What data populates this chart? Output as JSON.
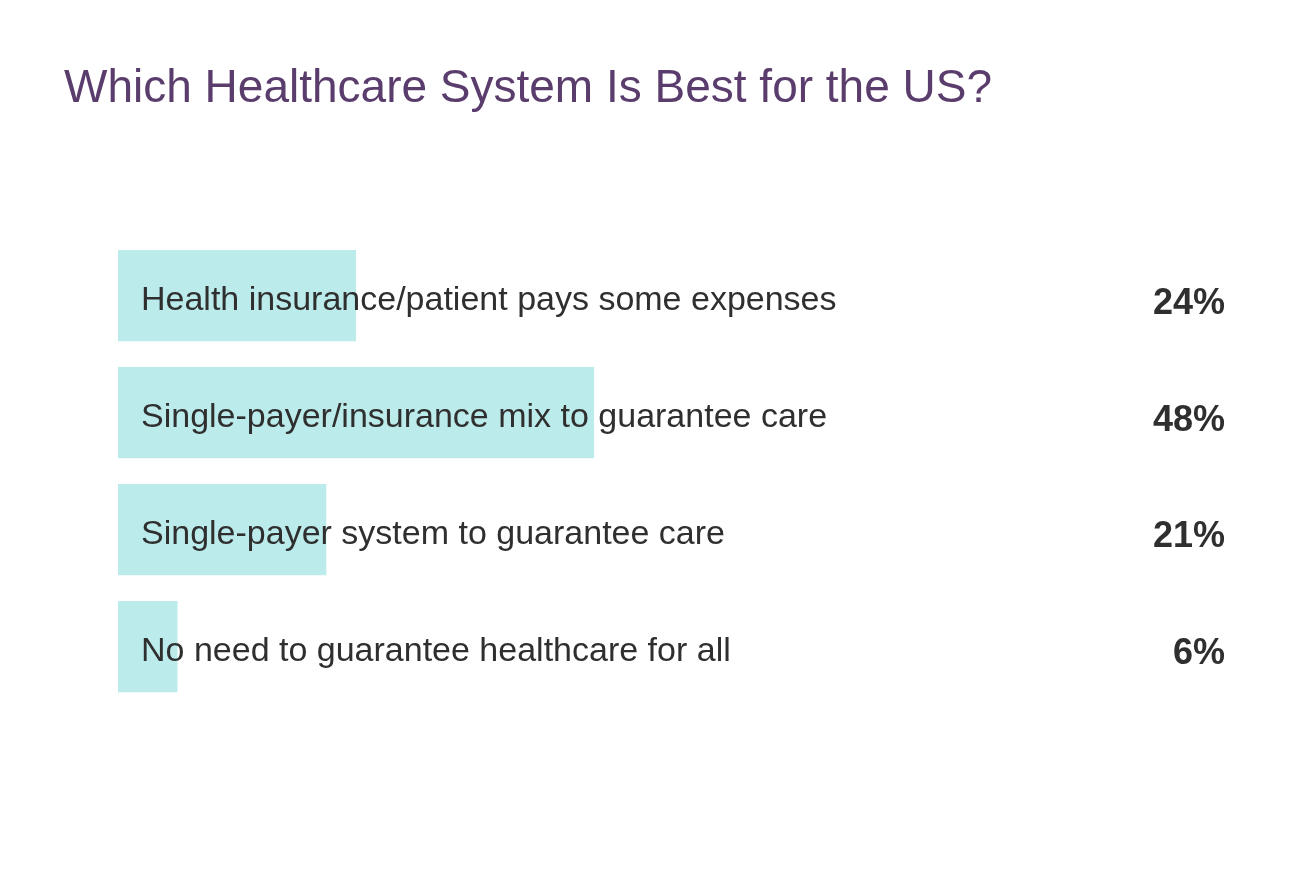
{
  "chart_data": {
    "type": "bar",
    "orientation": "horizontal",
    "title": "Which Healthcare System Is Best for the US?",
    "categories": [
      "Health insurance/patient pays some expenses",
      "Single-payer/insurance mix to guarantee care",
      "Single-payer system to guarantee care",
      "No need to guarantee healthcare for all"
    ],
    "values": [
      24,
      48,
      21,
      6
    ],
    "color": "#bcebeb",
    "value_labels": [
      "24%",
      "48%",
      "21%",
      "6%"
    ],
    "tick_labels": "y"
  }
}
